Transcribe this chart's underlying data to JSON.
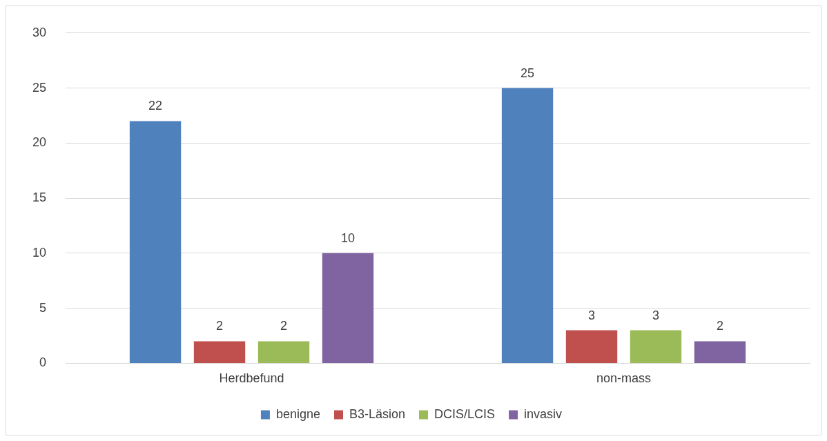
{
  "chart_data": {
    "type": "bar",
    "categories": [
      "Herdbefund",
      "non-mass"
    ],
    "series": [
      {
        "name": "benigne",
        "color": "#4f81bd",
        "values": [
          22,
          25
        ]
      },
      {
        "name": "B3-Läsion",
        "color": "#c0504d",
        "values": [
          2,
          3
        ]
      },
      {
        "name": "DCIS/LCIS",
        "color": "#9bbb59",
        "values": [
          2,
          3
        ]
      },
      {
        "name": "invasiv",
        "color": "#8064a2",
        "values": [
          10,
          2
        ]
      }
    ],
    "ylim": [
      0,
      30
    ],
    "yticks": [
      0,
      5,
      10,
      15,
      20,
      25,
      30
    ],
    "grid": "y",
    "legend": "bottom",
    "data_labels": true
  }
}
